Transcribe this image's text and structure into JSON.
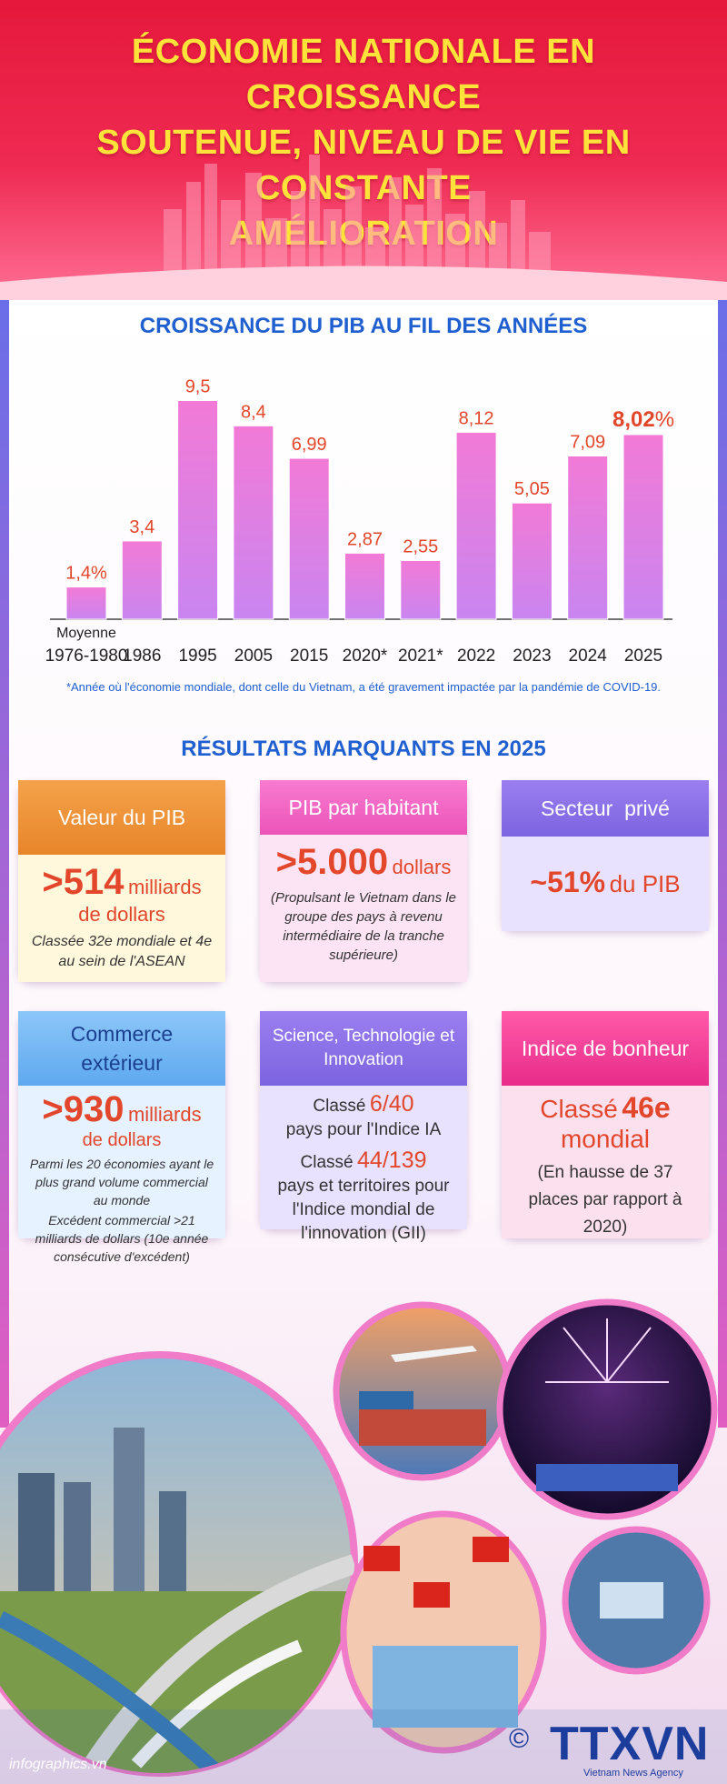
{
  "header": {
    "title_lines": [
      "ÉCONOMIE NATIONALE EN CROISSANCE",
      "SOUTENUE, NIVEAU DE VIE EN CONSTANTE",
      "AMÉLIORATION"
    ]
  },
  "growth_section": {
    "title": "CROISSANCE DU PIB AU FIL DES ANNÉES",
    "footnote": "*Année où l'économie mondiale, dont celle du Vietnam, a été gravement impactée par la pandémie de COVID-19."
  },
  "chart_data": {
    "type": "bar",
    "categories": [
      "Moyenne 1976-1980",
      "1986",
      "1995",
      "2005",
      "2015",
      "2020*",
      "2021*",
      "2022",
      "2023",
      "2024",
      "2025"
    ],
    "tick_labels": [
      [
        "Moyenne",
        "1976-1980"
      ],
      [
        "1986"
      ],
      [
        "1995"
      ],
      [
        "2005"
      ],
      [
        "2015"
      ],
      [
        "2020*"
      ],
      [
        "2021*"
      ],
      [
        "2022"
      ],
      [
        "2023"
      ],
      [
        "2024"
      ],
      [
        "2025"
      ]
    ],
    "values": [
      1.4,
      3.4,
      9.5,
      8.4,
      6.99,
      2.87,
      2.55,
      8.12,
      5.05,
      7.09,
      8.02
    ],
    "data_labels": [
      "1,4%",
      "3,4",
      "9,5",
      "8,4",
      "6,99",
      "2,87",
      "2,55",
      "8,12",
      "5,05",
      "7,09",
      "8,02"
    ],
    "last_label_unit": "%",
    "ylim": [
      0,
      10
    ],
    "title": "CROISSANCE DU PIB AU FIL DES ANNÉES",
    "xlabel": "",
    "ylabel": "",
    "grid": false,
    "colors": {
      "bar_top": "#f27ad6",
      "bar_bottom": "#c985f0",
      "label": "#e2462b"
    }
  },
  "results_section": {
    "title": "RÉSULTATS MARQUANTS EN 2025"
  },
  "cards": {
    "gdp_value": {
      "title": "Valeur du PIB",
      "prefix": ">",
      "value": "514",
      "unit": "milliards",
      "unit2": "de dollars",
      "note": "Classée 32e mondiale et 4e au sein de l'ASEAN"
    },
    "gdp_per_capita": {
      "title": "PIB par habitant",
      "prefix": ">",
      "value": "5.000",
      "unit": "dollars",
      "note": "(Propulsant le Vietnam dans le groupe des pays à revenu intermédiaire de la tranche supérieure)"
    },
    "private_sector": {
      "title": "Secteur  privé",
      "value": "~51%",
      "unit": "du PIB"
    },
    "foreign_trade": {
      "title": "Commerce extérieur",
      "prefix": ">",
      "value": "930",
      "unit": "milliards",
      "unit2": "de dollars",
      "note": "Parmi les 20 économies ayant le plus grand volume commercial au monde",
      "note2": "Excédent commercial >21 milliards de dollars (10e année consécutive d'excédent)"
    },
    "science": {
      "title": "Science, Technologie et Innovation",
      "rank1_prefix": "Classé",
      "rank1": "6/40",
      "rank1_desc": "pays pour l'Indice IA",
      "rank2_prefix": "Classé",
      "rank2": "44/139",
      "rank2_desc": "pays et territoires pour l'Indice mondial de l'innovation (GII)"
    },
    "happiness": {
      "title": "Indice de bonheur",
      "rank_prefix": "Classé",
      "rank": "46e",
      "rank_suffix": "mondial",
      "note": "(En hausse de 37 places par rapport à 2020)"
    }
  },
  "footer": {
    "credit": "infographics.vn",
    "copyright": "©",
    "logo": "TTXVN",
    "logo_sub": "Vietnam News Agency"
  }
}
